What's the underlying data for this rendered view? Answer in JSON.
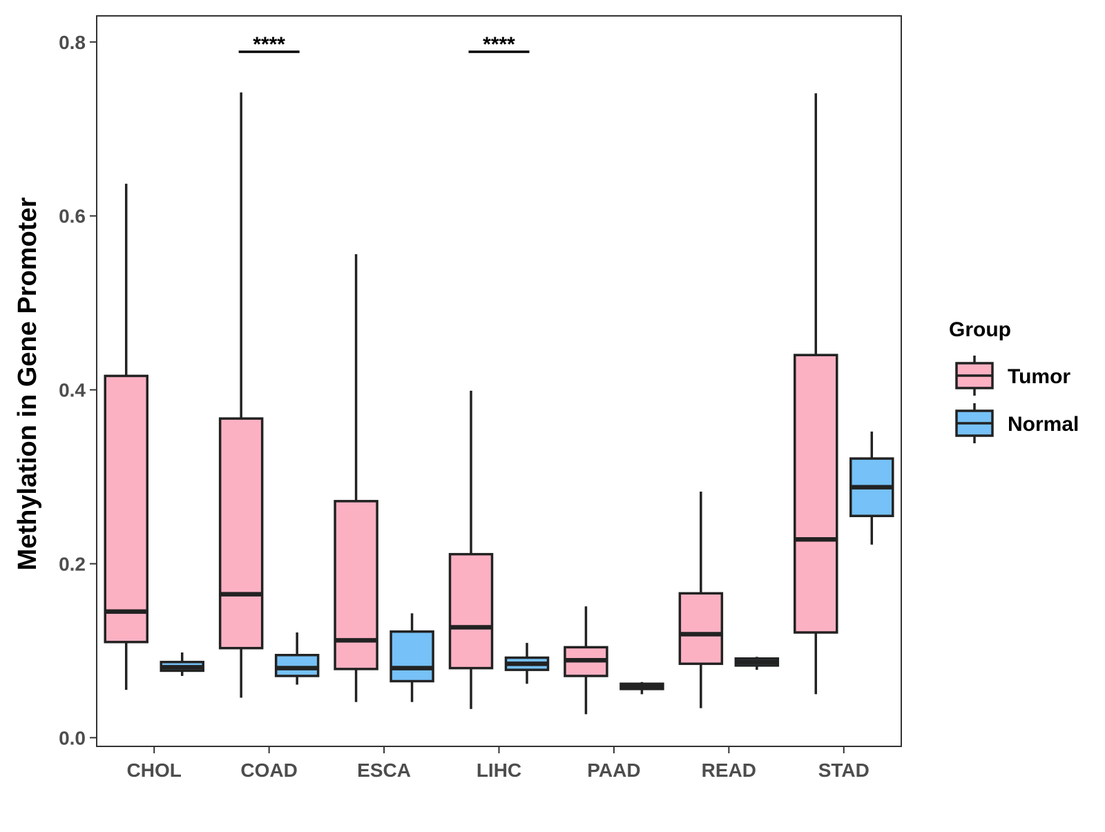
{
  "chart_data": {
    "type": "boxplot",
    "title": "",
    "xlabel": "",
    "ylabel": "Methylation in Gene Promoter",
    "ylim": [
      -0.01,
      0.83
    ],
    "yticks": [
      0.0,
      0.2,
      0.4,
      0.6,
      0.8
    ],
    "ytick_labels": [
      "0.0",
      "0.2",
      "0.4",
      "0.6",
      "0.8"
    ],
    "categories": [
      "CHOL",
      "COAD",
      "ESCA",
      "LIHC",
      "PAAD",
      "READ",
      "STAD"
    ],
    "legend": {
      "title": "Group",
      "position": "right",
      "entries": [
        {
          "name": "Tumor",
          "color": "#FCB1C3"
        },
        {
          "name": "Normal",
          "color": "#76C1F7"
        }
      ]
    },
    "series": [
      {
        "name": "Tumor",
        "color": "#FCB1C3",
        "boxes": [
          {
            "category": "CHOL",
            "whisker_low": 0.055,
            "q1": 0.11,
            "median": 0.145,
            "q3": 0.416,
            "whisker_high": 0.637
          },
          {
            "category": "COAD",
            "whisker_low": 0.046,
            "q1": 0.103,
            "median": 0.165,
            "q3": 0.367,
            "whisker_high": 0.742
          },
          {
            "category": "ESCA",
            "whisker_low": 0.041,
            "q1": 0.079,
            "median": 0.112,
            "q3": 0.272,
            "whisker_high": 0.556
          },
          {
            "category": "LIHC",
            "whisker_low": 0.033,
            "q1": 0.08,
            "median": 0.127,
            "q3": 0.211,
            "whisker_high": 0.399
          },
          {
            "category": "PAAD",
            "whisker_low": 0.027,
            "q1": 0.071,
            "median": 0.089,
            "q3": 0.104,
            "whisker_high": 0.151
          },
          {
            "category": "READ",
            "whisker_low": 0.034,
            "q1": 0.085,
            "median": 0.119,
            "q3": 0.166,
            "whisker_high": 0.283
          },
          {
            "category": "STAD",
            "whisker_low": 0.05,
            "q1": 0.121,
            "median": 0.228,
            "q3": 0.44,
            "whisker_high": 0.741
          }
        ]
      },
      {
        "name": "Normal",
        "color": "#76C1F7",
        "boxes": [
          {
            "category": "CHOL",
            "whisker_low": 0.071,
            "q1": 0.077,
            "median": 0.081,
            "q3": 0.087,
            "whisker_high": 0.098
          },
          {
            "category": "COAD",
            "whisker_low": 0.061,
            "q1": 0.071,
            "median": 0.08,
            "q3": 0.095,
            "whisker_high": 0.121
          },
          {
            "category": "ESCA",
            "whisker_low": 0.041,
            "q1": 0.065,
            "median": 0.08,
            "q3": 0.122,
            "whisker_high": 0.143
          },
          {
            "category": "LIHC",
            "whisker_low": 0.062,
            "q1": 0.078,
            "median": 0.085,
            "q3": 0.092,
            "whisker_high": 0.109
          },
          {
            "category": "PAAD",
            "whisker_low": 0.05,
            "q1": 0.056,
            "median": 0.059,
            "q3": 0.062,
            "whisker_high": 0.064
          },
          {
            "category": "READ",
            "whisker_low": 0.078,
            "q1": 0.083,
            "median": 0.087,
            "q3": 0.091,
            "whisker_high": 0.093
          },
          {
            "category": "STAD",
            "whisker_low": 0.222,
            "q1": 0.255,
            "median": 0.288,
            "q3": 0.321,
            "whisker_high": 0.352
          }
        ]
      }
    ],
    "annotations": [
      {
        "category": "COAD",
        "label": "****"
      },
      {
        "category": "LIHC",
        "label": "****"
      }
    ]
  }
}
